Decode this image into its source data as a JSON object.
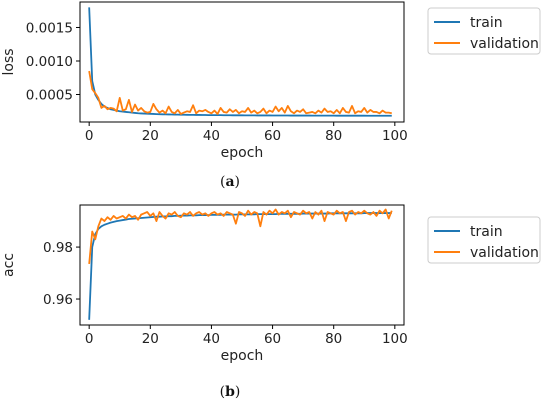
{
  "chart_data": [
    {
      "type": "line",
      "caption": "(a)",
      "caption_letter": "a",
      "xlabel": "epoch",
      "ylabel": "loss",
      "xlim": [
        -3,
        103
      ],
      "ylim": [
        9e-05,
        0.00188
      ],
      "xticks": [
        0,
        20,
        40,
        60,
        80,
        100
      ],
      "yticks": [
        0.0005,
        0.001,
        0.0015
      ],
      "ytick_labels": [
        "0.0005",
        "0.0010",
        "0.0015"
      ],
      "legend": "outside-right",
      "x": [
        0,
        1,
        2,
        3,
        4,
        5,
        6,
        7,
        8,
        9,
        10,
        11,
        12,
        13,
        14,
        15,
        16,
        17,
        18,
        19,
        20,
        21,
        22,
        23,
        24,
        25,
        26,
        27,
        28,
        29,
        30,
        31,
        32,
        33,
        34,
        35,
        36,
        37,
        38,
        39,
        40,
        41,
        42,
        43,
        44,
        45,
        46,
        47,
        48,
        49,
        50,
        51,
        52,
        53,
        54,
        55,
        56,
        57,
        58,
        59,
        60,
        61,
        62,
        63,
        64,
        65,
        66,
        67,
        68,
        69,
        70,
        71,
        72,
        73,
        74,
        75,
        76,
        77,
        78,
        79,
        80,
        81,
        82,
        83,
        84,
        85,
        86,
        87,
        88,
        89,
        90,
        91,
        92,
        93,
        94,
        95,
        96,
        97,
        98,
        99
      ],
      "series": [
        {
          "name": "train",
          "color": "#1f77b4",
          "values": [
            0.0018,
            0.0007,
            0.0005,
            0.00042,
            0.00036,
            0.00032,
            0.0003,
            0.00028,
            0.00027,
            0.00026,
            0.00025,
            0.000245,
            0.00024,
            0.000235,
            0.00023,
            0.000225,
            0.00022,
            0.000218,
            0.000216,
            0.000214,
            0.000212,
            0.00021,
            0.000208,
            0.000206,
            0.000205,
            0.000204,
            0.000203,
            0.000202,
            0.000201,
            0.0002,
            0.000199,
            0.000198,
            0.000197,
            0.000196,
            0.000196,
            0.000195,
            0.000195,
            0.000194,
            0.000194,
            0.000193,
            0.000193,
            0.000192,
            0.000192,
            0.000192,
            0.000191,
            0.000191,
            0.000191,
            0.00019,
            0.00019,
            0.00019,
            0.00019,
            0.000189,
            0.000189,
            0.000189,
            0.000189,
            0.000188,
            0.000188,
            0.000188,
            0.000188,
            0.000188,
            0.000187,
            0.000187,
            0.000187,
            0.000187,
            0.000187,
            0.000187,
            0.000186,
            0.000186,
            0.000186,
            0.000186,
            0.000186,
            0.000186,
            0.000186,
            0.000185,
            0.000185,
            0.000185,
            0.000185,
            0.000185,
            0.000185,
            0.000185,
            0.000185,
            0.000184,
            0.000184,
            0.000184,
            0.000184,
            0.000184,
            0.000184,
            0.000184,
            0.000184,
            0.000184,
            0.000184,
            0.000183,
            0.000183,
            0.000183,
            0.000183,
            0.000183,
            0.000183,
            0.000183,
            0.000183,
            0.000183
          ]
        },
        {
          "name": "validation",
          "color": "#ff7f0e",
          "values": [
            0.00085,
            0.00058,
            0.00052,
            0.00045,
            0.0003,
            0.00033,
            0.00028,
            0.0003,
            0.00029,
            0.00025,
            0.00045,
            0.00026,
            0.00028,
            0.00042,
            0.00024,
            0.00035,
            0.00026,
            0.0003,
            0.00025,
            0.00023,
            0.00024,
            0.00036,
            0.00028,
            0.00023,
            0.00026,
            0.00022,
            0.00032,
            0.00024,
            0.00022,
            0.00027,
            0.00021,
            0.00023,
            0.00025,
            0.00024,
            0.00034,
            0.00022,
            0.00026,
            0.00025,
            0.00027,
            0.00024,
            0.00022,
            0.00026,
            0.00021,
            0.0003,
            0.00024,
            0.00023,
            0.00028,
            0.00024,
            0.00027,
            0.00022,
            0.00025,
            0.00024,
            0.0003,
            0.00023,
            0.00026,
            0.00022,
            0.00024,
            0.00029,
            0.00022,
            0.00026,
            0.00024,
            0.00032,
            0.00025,
            0.0003,
            0.00023,
            0.00033,
            0.00025,
            0.00022,
            0.00026,
            0.00024,
            0.00028,
            0.00022,
            0.00023,
            0.00024,
            0.00022,
            0.00026,
            0.00023,
            0.00029,
            0.00024,
            0.00025,
            0.00022,
            0.00027,
            0.00022,
            0.0003,
            0.00024,
            0.00023,
            0.00033,
            0.00022,
            0.00025,
            0.00024,
            0.0003,
            0.00023,
            0.00027,
            0.00024,
            0.00024,
            0.00022,
            0.00026,
            0.00023,
            0.00023,
            0.00022
          ]
        }
      ]
    },
    {
      "type": "line",
      "caption": "(b)",
      "caption_letter": "b",
      "xlabel": "epoch",
      "ylabel": "acc",
      "xlim": [
        -3,
        103
      ],
      "ylim": [
        0.95,
        0.9962
      ],
      "xticks": [
        0,
        20,
        40,
        60,
        80,
        100
      ],
      "yticks": [
        0.96,
        0.98
      ],
      "ytick_labels": [
        "0.96",
        "0.98"
      ],
      "legend": "outside-right",
      "x": [
        0,
        1,
        2,
        3,
        4,
        5,
        6,
        7,
        8,
        9,
        10,
        11,
        12,
        13,
        14,
        15,
        16,
        17,
        18,
        19,
        20,
        21,
        22,
        23,
        24,
        25,
        26,
        27,
        28,
        29,
        30,
        31,
        32,
        33,
        34,
        35,
        36,
        37,
        38,
        39,
        40,
        41,
        42,
        43,
        44,
        45,
        46,
        47,
        48,
        49,
        50,
        51,
        52,
        53,
        54,
        55,
        56,
        57,
        58,
        59,
        60,
        61,
        62,
        63,
        64,
        65,
        66,
        67,
        68,
        69,
        70,
        71,
        72,
        73,
        74,
        75,
        76,
        77,
        78,
        79,
        80,
        81,
        82,
        83,
        84,
        85,
        86,
        87,
        88,
        89,
        90,
        91,
        92,
        93,
        94,
        95,
        96,
        97,
        98,
        99
      ],
      "series": [
        {
          "name": "train",
          "color": "#1f77b4",
          "values": [
            0.952,
            0.98,
            0.985,
            0.987,
            0.988,
            0.9886,
            0.989,
            0.9894,
            0.9897,
            0.99,
            0.9902,
            0.9904,
            0.9906,
            0.9908,
            0.9909,
            0.991,
            0.9911,
            0.9912,
            0.9913,
            0.9914,
            0.9915,
            0.9916,
            0.9917,
            0.9917,
            0.9918,
            0.9918,
            0.9919,
            0.9919,
            0.992,
            0.992,
            0.9921,
            0.9921,
            0.9921,
            0.9922,
            0.9922,
            0.9922,
            0.9923,
            0.9923,
            0.9923,
            0.9923,
            0.9924,
            0.9924,
            0.9924,
            0.9924,
            0.9925,
            0.9925,
            0.9925,
            0.9925,
            0.9925,
            0.9926,
            0.9926,
            0.9926,
            0.9926,
            0.9926,
            0.9926,
            0.9927,
            0.9927,
            0.9927,
            0.9927,
            0.9927,
            0.9927,
            0.9927,
            0.9928,
            0.9928,
            0.9928,
            0.9928,
            0.9928,
            0.9928,
            0.9928,
            0.9928,
            0.9929,
            0.9929,
            0.9929,
            0.9929,
            0.9929,
            0.9929,
            0.9929,
            0.9929,
            0.9929,
            0.993,
            0.993,
            0.993,
            0.993,
            0.993,
            0.993,
            0.993,
            0.993,
            0.993,
            0.993,
            0.993,
            0.9931,
            0.9931,
            0.9931,
            0.9931,
            0.9931,
            0.9931,
            0.9931,
            0.9931,
            0.9931,
            0.9931
          ]
        },
        {
          "name": "validation",
          "color": "#ff7f0e",
          "values": [
            0.9735,
            0.986,
            0.983,
            0.988,
            0.991,
            0.99,
            0.9915,
            0.9905,
            0.992,
            0.991,
            0.9915,
            0.992,
            0.991,
            0.9925,
            0.9915,
            0.992,
            0.9905,
            0.9925,
            0.993,
            0.9935,
            0.992,
            0.993,
            0.99,
            0.9935,
            0.992,
            0.991,
            0.993,
            0.9925,
            0.9935,
            0.992,
            0.9915,
            0.993,
            0.9925,
            0.9935,
            0.992,
            0.993,
            0.9935,
            0.9925,
            0.993,
            0.992,
            0.993,
            0.9935,
            0.9925,
            0.993,
            0.992,
            0.9935,
            0.993,
            0.9925,
            0.989,
            0.9935,
            0.993,
            0.992,
            0.994,
            0.9925,
            0.9935,
            0.993,
            0.988,
            0.9935,
            0.9925,
            0.994,
            0.993,
            0.9945,
            0.9925,
            0.9935,
            0.993,
            0.994,
            0.9915,
            0.9935,
            0.993,
            0.9925,
            0.994,
            0.993,
            0.9935,
            0.991,
            0.9935,
            0.9925,
            0.994,
            0.99,
            0.9935,
            0.993,
            0.9925,
            0.994,
            0.993,
            0.9935,
            0.99,
            0.9935,
            0.994,
            0.9925,
            0.9935,
            0.993,
            0.994,
            0.993,
            0.9925,
            0.9935,
            0.992,
            0.994,
            0.993,
            0.9945,
            0.991,
            0.994
          ]
        }
      ]
    }
  ]
}
